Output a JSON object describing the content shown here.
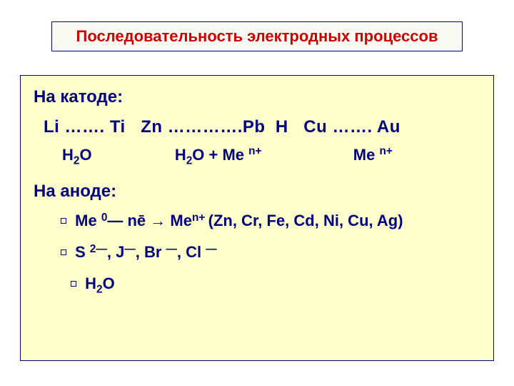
{
  "colors": {
    "title_text": "#cc0000",
    "body_text": "#000080",
    "content_bg": "#ffffcc",
    "title_bg": "#fafaf5",
    "border": "#000080",
    "page_bg": "#ffffff"
  },
  "fonts": {
    "title_size_pt": 17,
    "body_size_pt": 18,
    "family": "Arial"
  },
  "title": "Последовательность электродных процессов",
  "cathode": {
    "header": "На катоде:",
    "series": {
      "seg1": "Li ……. Ti",
      "seg2": "Zn ………….Pb",
      "seg3": "H",
      "seg4": "Cu ……. Au"
    },
    "products": {
      "p1_base": "H",
      "p1_sub": "2",
      "p1_tail": "O",
      "p2_base": "H",
      "p2_sub": "2",
      "p2_mid": "O + Me ",
      "p2_sup": "n+",
      "p3_base": "Me ",
      "p3_sup": "n+"
    }
  },
  "anode": {
    "header": "На аноде:",
    "item1": {
      "lead": "Me ",
      "sup1": "0",
      "mid": "― nē → Me",
      "sup2": "n+ ",
      "tail": "(Zn, Cr, Fe, Cd, Ni, Cu, Ag)"
    },
    "item2": {
      "a": "S ",
      "a_sup": "2―",
      "b": ",  J",
      "b_sup": "―",
      "c": ",  Br ",
      "c_sup": "―",
      "d": ", Cl ",
      "d_sup": "―"
    },
    "item3": {
      "base": " H",
      "sub": "2",
      "tail": "O"
    }
  }
}
